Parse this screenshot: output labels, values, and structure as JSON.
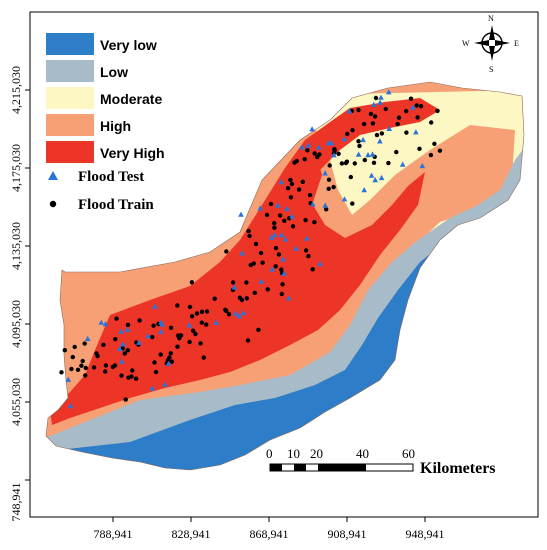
{
  "map": {
    "colors": {
      "very_low": "#2e7dc9",
      "low": "#a7bcc8",
      "moderate": "#fdf7c4",
      "high": "#f7a076",
      "very_high": "#ec3427",
      "test_marker": "#2a73d8",
      "train_marker": "#000000"
    }
  },
  "legend": {
    "items": [
      {
        "label": "Very low",
        "color": "#2e7dc9"
      },
      {
        "label": "Low",
        "color": "#a7bcc8"
      },
      {
        "label": "Moderate",
        "color": "#fdf7c4"
      },
      {
        "label": "High",
        "color": "#f7a076"
      },
      {
        "label": "Very High",
        "color": "#ec3427"
      }
    ],
    "test_label": "Flood Test",
    "train_label": "Flood Train"
  },
  "axes": {
    "x_ticks": [
      "788,941",
      "828,941",
      "868,941",
      "908,941",
      "948,941"
    ],
    "y_ticks": [
      "4,215,030",
      "4,175,030",
      "4,135,030",
      "4,095,030",
      "4,055,030",
      "748,941"
    ]
  },
  "scale_bar": {
    "labels": [
      "0",
      "10",
      "20",
      "40",
      "60"
    ],
    "unit": "Kilometers"
  },
  "compass": {
    "north": "N",
    "south": "S",
    "east": "E",
    "west": "W"
  }
}
